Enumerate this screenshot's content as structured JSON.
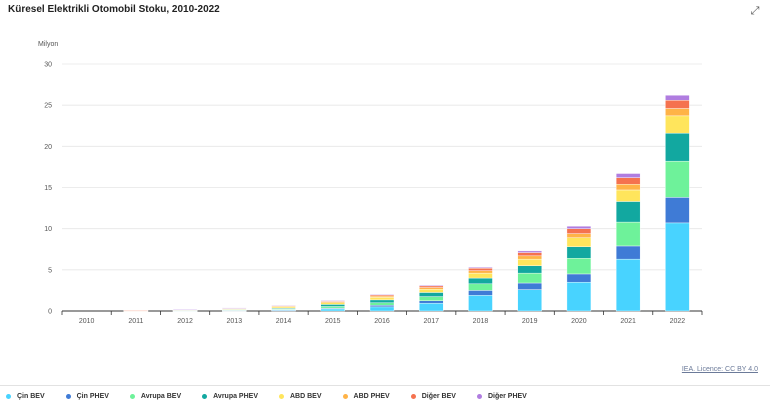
{
  "header": {
    "title": "Küresel Elektrikli Otomobil Stoku, 2010-2022",
    "expand_icon": "expand-icon"
  },
  "credit": "IEA. Licence: CC BY 4.0",
  "chart_data": {
    "type": "bar",
    "stacked": true,
    "ylabel": "Milyon",
    "ylim": [
      0,
      30
    ],
    "yticks": [
      0,
      5,
      10,
      15,
      20,
      25,
      30
    ],
    "grid": true,
    "legend_position": "bottom-left",
    "categories": [
      "2010",
      "2011",
      "2012",
      "2013",
      "2014",
      "2015",
      "2016",
      "2017",
      "2018",
      "2019",
      "2020",
      "2021",
      "2022"
    ],
    "series": [
      {
        "name": "Çin BEV",
        "color": "#48d3ff",
        "values": [
          0.0,
          0.01,
          0.02,
          0.05,
          0.1,
          0.25,
          0.5,
          0.95,
          1.9,
          2.6,
          3.5,
          6.3,
          10.7
        ]
      },
      {
        "name": "Çin PHEV",
        "color": "#3f7bd6",
        "values": [
          0.0,
          0.0,
          0.01,
          0.02,
          0.04,
          0.1,
          0.2,
          0.3,
          0.6,
          0.8,
          1.0,
          1.6,
          3.1
        ]
      },
      {
        "name": "Avrupa BEV",
        "color": "#6ef29a",
        "values": [
          0.0,
          0.01,
          0.03,
          0.05,
          0.1,
          0.2,
          0.3,
          0.5,
          0.8,
          1.2,
          1.9,
          2.9,
          4.4
        ]
      },
      {
        "name": "Avrupa PHEV",
        "color": "#12a8a0",
        "values": [
          0.0,
          0.01,
          0.02,
          0.05,
          0.1,
          0.25,
          0.35,
          0.5,
          0.7,
          0.9,
          1.4,
          2.5,
          3.4
        ]
      },
      {
        "name": "ABD BEV",
        "color": "#ffe55c",
        "values": [
          0.0,
          0.01,
          0.04,
          0.08,
          0.15,
          0.2,
          0.3,
          0.4,
          0.6,
          0.8,
          1.1,
          1.4,
          2.1
        ]
      },
      {
        "name": "ABD PHEV",
        "color": "#ffb347",
        "values": [
          0.0,
          0.01,
          0.04,
          0.07,
          0.11,
          0.14,
          0.17,
          0.2,
          0.3,
          0.4,
          0.5,
          0.7,
          0.9
        ]
      },
      {
        "name": "Diğer BEV",
        "color": "#f5724f",
        "values": [
          0.0,
          0.01,
          0.02,
          0.04,
          0.08,
          0.1,
          0.15,
          0.2,
          0.3,
          0.4,
          0.6,
          0.8,
          1.0
        ]
      },
      {
        "name": "Diğer PHEV",
        "color": "#b07de0",
        "values": [
          0.0,
          0.0,
          0.01,
          0.02,
          0.03,
          0.04,
          0.05,
          0.1,
          0.1,
          0.2,
          0.3,
          0.5,
          0.6
        ]
      }
    ]
  }
}
